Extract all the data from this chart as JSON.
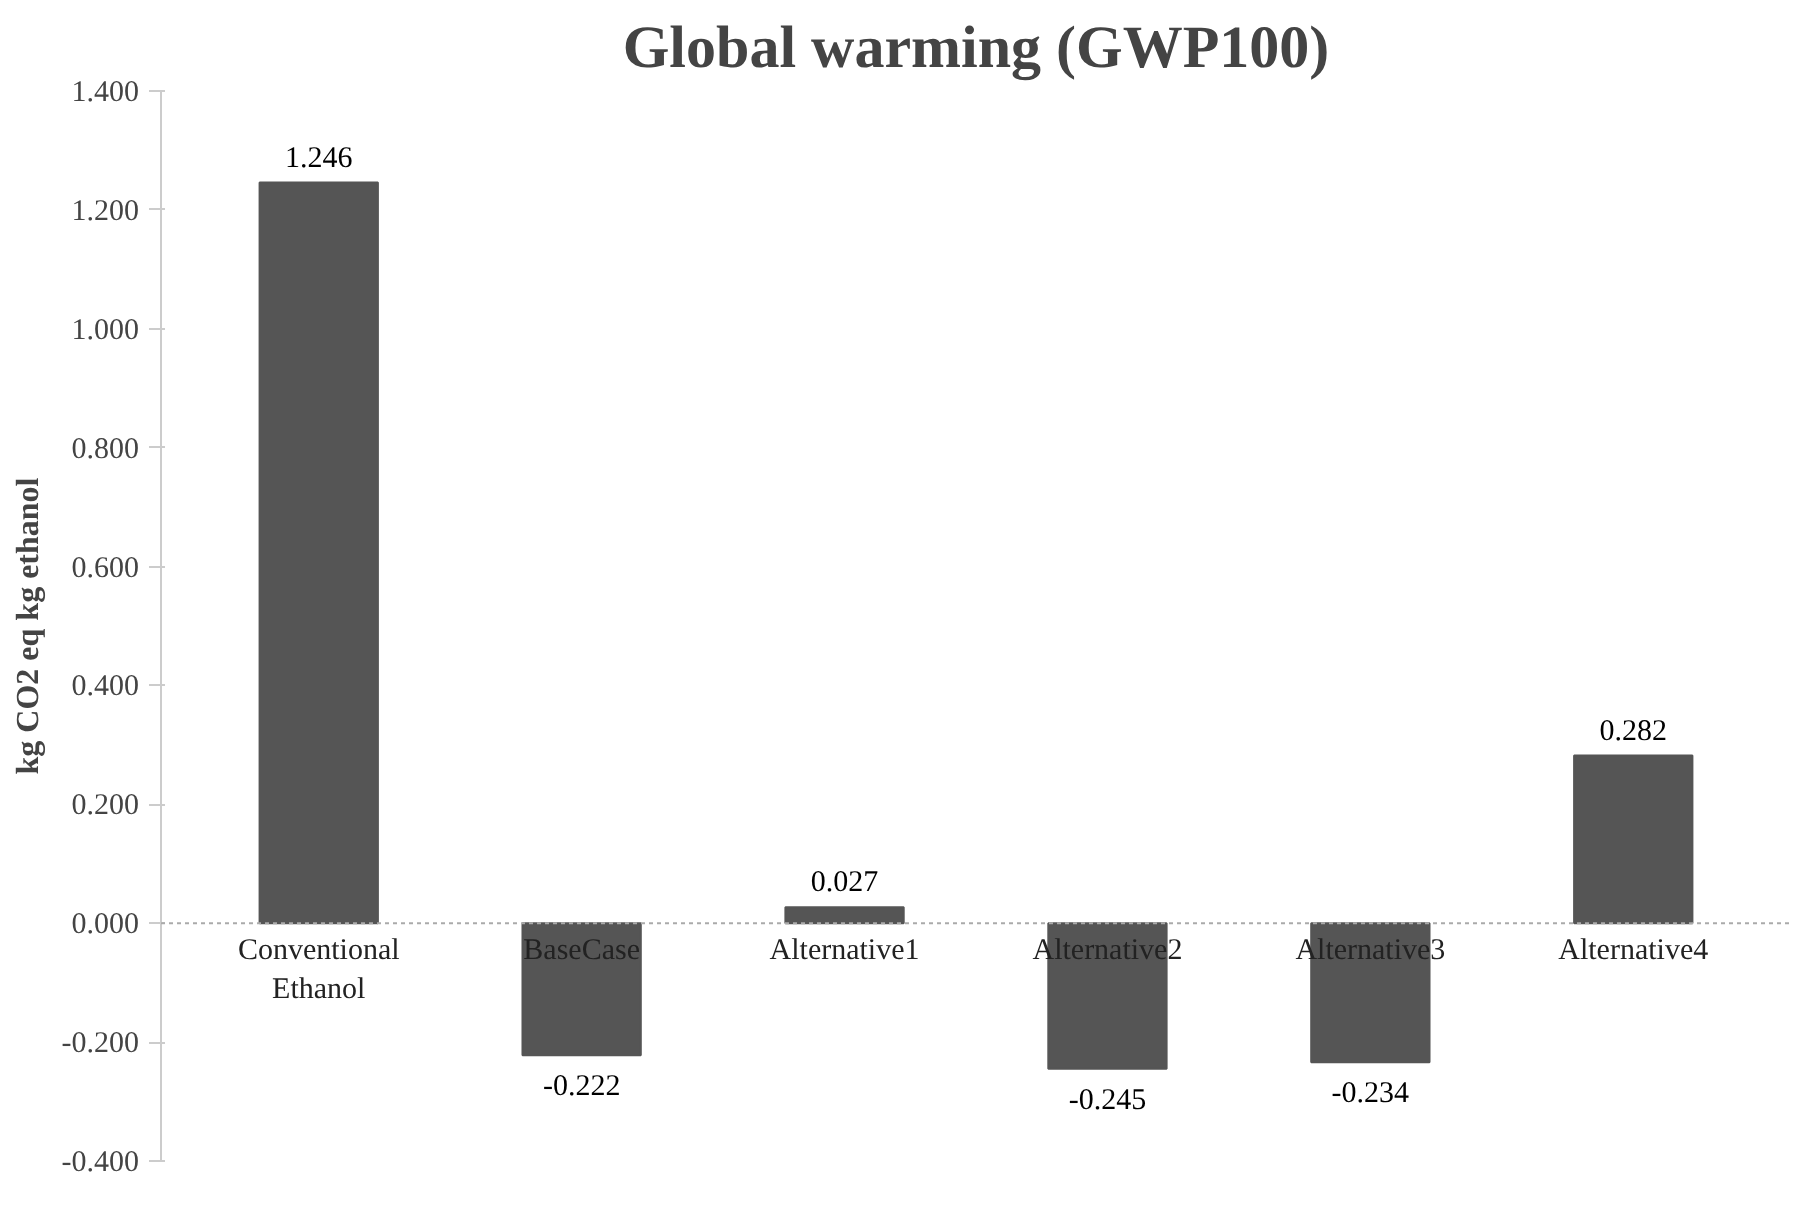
{
  "chart_data": {
    "type": "bar",
    "title": "Global warming (GWP100)",
    "ylabel": "kg CO2 eq kg ethanol",
    "categories": [
      "Conventional\nEthanol",
      "BaseCase",
      "Alternative1",
      "Alternative2",
      "Alternative3",
      "Alternative4"
    ],
    "values": [
      1.246,
      -0.222,
      0.027,
      -0.245,
      -0.234,
      0.282
    ],
    "value_labels": [
      "1.246",
      "-0.222",
      "0.027",
      "-0.245",
      "-0.234",
      "0.282"
    ],
    "color": "#555555",
    "ylim": [
      -0.4,
      1.4
    ],
    "yticks": [
      {
        "value": -0.4,
        "label": "-0.400"
      },
      {
        "value": -0.2,
        "label": "-0.200"
      },
      {
        "value": 0,
        "label": "0.000"
      },
      {
        "value": 0.2,
        "label": "0.200"
      },
      {
        "value": 0.4,
        "label": "0.400"
      },
      {
        "value": 0.6,
        "label": "0.600"
      },
      {
        "value": 0.8,
        "label": "0.800"
      },
      {
        "value": 1.0,
        "label": "1.000"
      },
      {
        "value": 1.2,
        "label": "1.200"
      },
      {
        "value": 1.4,
        "label": "1.400"
      }
    ],
    "ref_lines": [
      {
        "axis": "y",
        "value": 0,
        "color": "#aaaaaa",
        "line_style": "dotted"
      }
    ]
  }
}
